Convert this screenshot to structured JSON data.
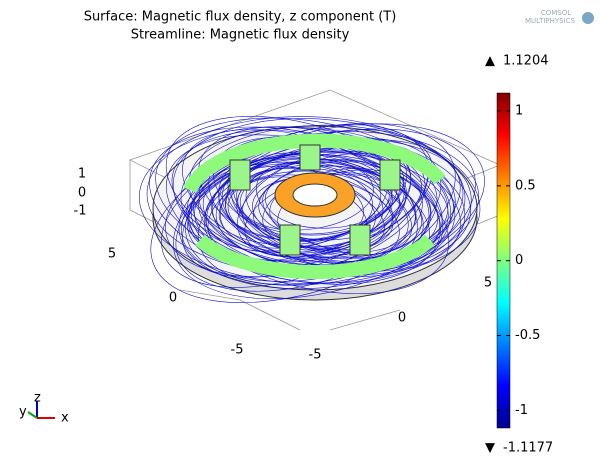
{
  "header": {
    "title_lines": [
      "Surface: Magnetic flux density, z component (T)",
      "Streamline: Magnetic flux density"
    ],
    "logo": [
      "COMSOL",
      "MULTIPHYSICS"
    ]
  },
  "colorbar": {
    "max": 1.1204,
    "min": -1.1177,
    "ticks": [
      1,
      0.5,
      0,
      -0.5,
      -1
    ]
  },
  "scene": {
    "x_ticks": [
      -5,
      0,
      5
    ],
    "y_ticks": [
      5,
      0,
      -5
    ],
    "z_ticks": [
      1,
      0,
      -1
    ],
    "triad": [
      "x",
      "y",
      "z"
    ]
  }
}
